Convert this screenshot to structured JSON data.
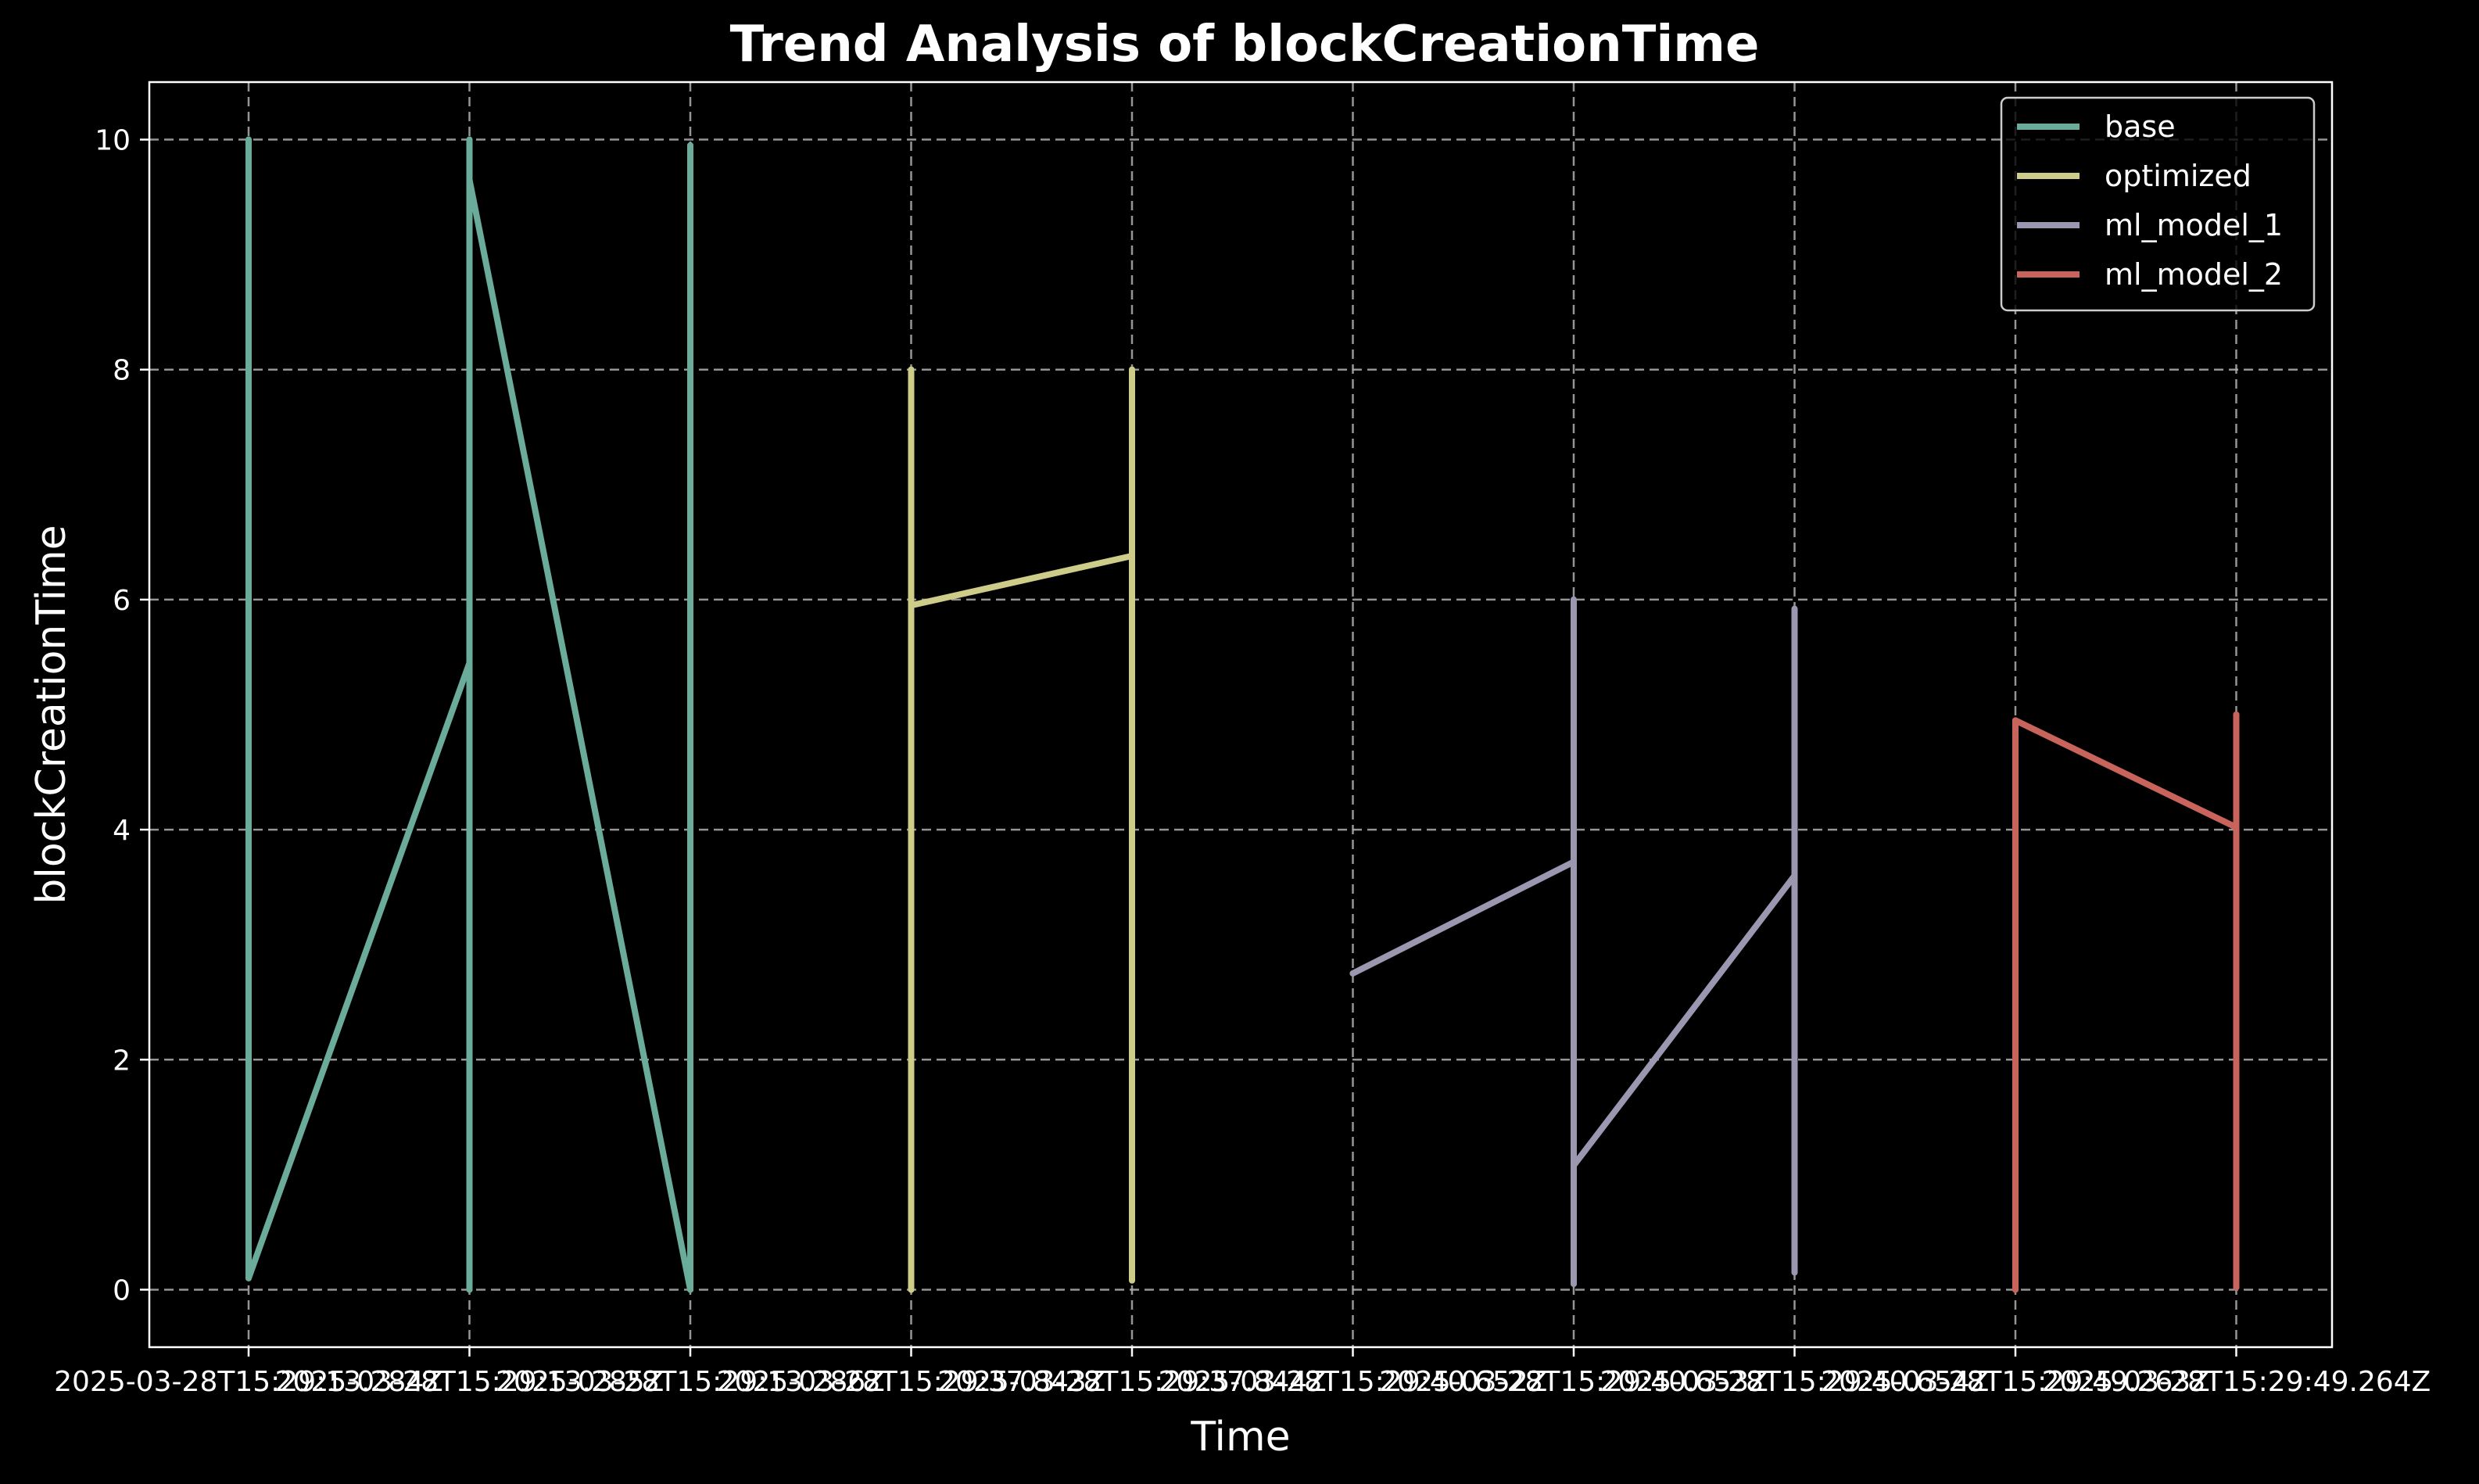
{
  "chart_data": {
    "type": "line",
    "title": "Trend Analysis of blockCreationTime",
    "xlabel": "Time",
    "ylabel": "blockCreationTime",
    "ylim": [
      -0.5,
      10.5
    ],
    "yticks": [
      0,
      2,
      4,
      6,
      8,
      10
    ],
    "grid": true,
    "legend_position": "top-right",
    "x_categories": [
      "2025-03-28T15:29:13.284Z",
      "2025-03-28T15:29:13.285Z",
      "2025-03-28T15:29:13.286Z",
      "2025-03-28T15:29:37.843Z",
      "2025-03-28T15:29:37.844Z",
      "2025-03-28T15:29:40.652Z",
      "2025-03-28T15:29:40.653Z",
      "2025-03-28T15:29:40.654Z",
      "2025-03-28T15:29:49.263Z",
      "2025-03-28T15:29:49.264Z"
    ],
    "series": [
      {
        "name": "base",
        "color": "#6aab9a",
        "segments": [
          [
            [
              0,
              10
            ],
            [
              0,
              0.1
            ],
            [
              1,
              5.45
            ],
            [
              1,
              0
            ],
            [
              1,
              10
            ],
            [
              1,
              9.65
            ],
            [
              2,
              0
            ],
            [
              2,
              9.95
            ]
          ]
        ]
      },
      {
        "name": "optimized",
        "color": "#cdcc88",
        "segments": [
          [
            [
              3,
              8
            ],
            [
              3,
              0
            ],
            [
              3,
              5.95
            ],
            [
              4,
              6.38
            ],
            [
              4,
              0.08
            ],
            [
              4,
              8
            ]
          ]
        ]
      },
      {
        "name": "ml_model_1",
        "color": "#9b97b0",
        "segments": [
          [
            [
              5,
              2.75
            ],
            [
              6,
              3.72
            ],
            [
              6,
              6.0
            ],
            [
              6,
              0.05
            ],
            [
              6,
              1.08
            ],
            [
              7,
              3.6
            ],
            [
              7,
              0.15
            ],
            [
              7,
              5.92
            ]
          ]
        ]
      },
      {
        "name": "ml_model_2",
        "color": "#c8645c",
        "segments": [
          [
            [
              8,
              0
            ],
            [
              8,
              4.95
            ],
            [
              9,
              4.02
            ],
            [
              9,
              0.02
            ],
            [
              9,
              5.0
            ]
          ]
        ]
      }
    ]
  }
}
